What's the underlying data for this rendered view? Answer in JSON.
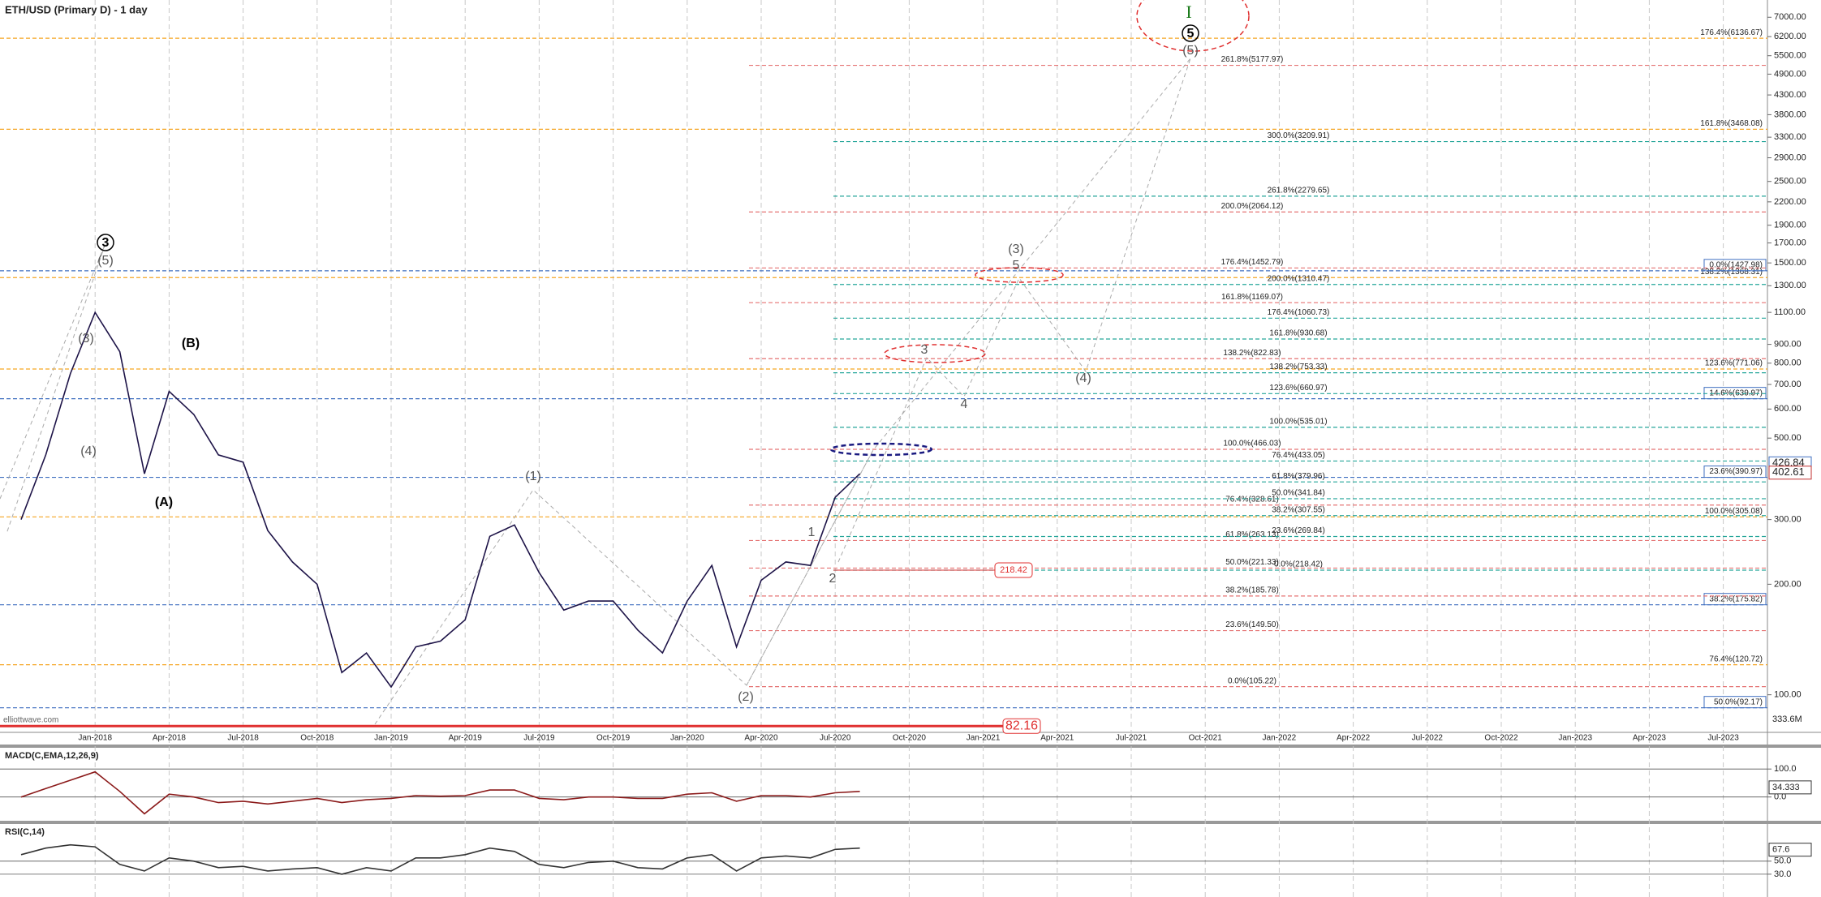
{
  "chart_data": [
    {
      "type": "line",
      "title": "ETH/USD (Primary D) - 1 day",
      "log_scale": true,
      "grid": true,
      "color": "#1e1448",
      "ylim": [
        79,
        7800
      ],
      "yticks": [
        {
          "value": 7000,
          "label": "7000.00"
        },
        {
          "value": 6200,
          "label": "6200.00"
        },
        {
          "value": 5500,
          "label": "5500.00"
        },
        {
          "value": 4900,
          "label": "4900.00"
        },
        {
          "value": 4300,
          "label": "4300.00"
        },
        {
          "value": 3800,
          "label": "3800.00"
        },
        {
          "value": 3300,
          "label": "3300.00"
        },
        {
          "value": 2900,
          "label": "2900.00"
        },
        {
          "value": 2500,
          "label": "2500.00"
        },
        {
          "value": 2200,
          "label": "2200.00"
        },
        {
          "value": 1900,
          "label": "1900.00"
        },
        {
          "value": 1700,
          "label": "1700.00"
        },
        {
          "value": 1500,
          "label": "1500.00"
        },
        {
          "value": 1300,
          "label": "1300.00"
        },
        {
          "value": 1100,
          "label": "1100.00"
        },
        {
          "value": 900,
          "label": "900.00"
        },
        {
          "value": 800,
          "label": "800.00"
        },
        {
          "value": 700,
          "label": "700.00"
        },
        {
          "value": 600,
          "label": "600.00"
        },
        {
          "value": 500,
          "label": "500.00"
        },
        {
          "value": 300,
          "label": "300.00"
        },
        {
          "value": 200,
          "label": "200.00"
        },
        {
          "value": 100,
          "label": "100.00"
        }
      ],
      "categories": [
        null,
        null,
        null,
        "Jan-2018",
        null,
        null,
        "Apr-2018",
        null,
        null,
        "Jul-2018",
        null,
        null,
        "Oct-2018",
        null,
        null,
        "Jan-2019",
        null,
        null,
        "Apr-2019",
        null,
        null,
        "Jul-2019",
        null,
        null,
        "Oct-2019",
        null,
        null,
        "Jan-2020",
        null,
        null,
        "Apr-2020",
        null,
        null,
        "Jul-2020",
        null,
        null,
        "Oct-2020",
        null,
        null,
        "Jan-2021",
        null,
        null,
        "Apr-2021",
        null,
        null,
        "Jul-2021",
        null,
        null,
        "Oct-2021",
        null,
        null,
        "Jan-2022",
        null,
        null,
        "Apr-2022",
        null,
        null,
        "Jul-2022",
        null,
        null,
        "Oct-2022",
        null,
        null,
        "Jan-2023",
        null,
        null,
        "Apr-2023",
        null,
        null,
        "Jul-2023",
        null
      ],
      "values": [
        300,
        450,
        750,
        1100,
        860,
        400,
        670,
        580,
        450,
        430,
        280,
        230,
        200,
        115,
        130,
        105,
        135,
        140,
        160,
        270,
        290,
        215,
        170,
        180,
        180,
        150,
        130,
        180,
        225,
        135,
        205,
        230,
        225,
        345,
        400,
        null,
        null,
        null,
        null,
        null,
        null,
        null,
        null,
        null,
        null,
        null,
        null,
        null,
        null,
        null,
        null,
        null,
        null,
        null,
        null,
        null,
        null,
        null,
        null,
        null,
        null,
        null,
        null,
        null,
        null,
        null,
        null,
        null,
        null,
        null,
        null
      ],
      "levels": [
        {
          "label": "176.4%(6136.67)",
          "value": 6136.67,
          "color": "#f5a623"
        },
        {
          "label": "161.8%(3468.08)",
          "value": 3468.08,
          "color": "#f5a623"
        },
        {
          "label": "138.2%(1368.31)",
          "value": 1368.31,
          "color": "#f5a623"
        },
        {
          "label": "123.6%(771.06)",
          "value": 771.06,
          "color": "#f5a623"
        },
        {
          "label": "100.0%(305.08)",
          "value": 305.08,
          "color": "#f5a623"
        },
        {
          "label": "76.4%(120.72)",
          "value": 120.72,
          "color": "#f5a623"
        },
        {
          "label": "0.0%(1427.98)",
          "value": 1427.98,
          "color": "#3f6fc0"
        },
        {
          "label": "14.6%(639.97)",
          "value": 639.97,
          "color": "#3f6fc0"
        },
        {
          "label": "23.6%(390.97)",
          "value": 390.97,
          "color": "#3f6fc0"
        },
        {
          "label": "38.2%(175.82)",
          "value": 175.82,
          "color": "#3f6fc0"
        },
        {
          "label": "50.0%(92.17)",
          "value": 92.17,
          "color": "#3f6fc0"
        },
        {
          "label": "261.8%(5177.97)",
          "value": 5177.97,
          "color": "#e57373"
        },
        {
          "label": "200.0%(2064.12)",
          "value": 2064.12,
          "color": "#e57373"
        },
        {
          "label": "176.4%(1452.79)",
          "value": 1452.79,
          "color": "#e57373"
        },
        {
          "label": "161.8%(1169.07)",
          "value": 1169.07,
          "color": "#e57373"
        },
        {
          "label": "138.2%(822.83)",
          "value": 822.83,
          "color": "#e57373"
        },
        {
          "label": "100.0%(466.03)",
          "value": 466.03,
          "color": "#e57373"
        },
        {
          "label": "76.4%(328.61)",
          "value": 328.61,
          "color": "#e57373"
        },
        {
          "label": "61.8%(263.13)",
          "value": 263.13,
          "color": "#e57373"
        },
        {
          "label": "50.0%(221.33)",
          "value": 221.33,
          "color": "#e57373"
        },
        {
          "label": "38.2%(185.78)",
          "value": 185.78,
          "color": "#e57373"
        },
        {
          "label": "23.6%(149.50)",
          "value": 149.5,
          "color": "#e57373"
        },
        {
          "label": "0.0%(105.22)",
          "value": 105.22,
          "color": "#e57373"
        },
        {
          "label": "300.0%(3209.91)",
          "value": 3209.91,
          "color": "#26a69a"
        },
        {
          "label": "261.8%(2279.65)",
          "value": 2279.65,
          "color": "#26a69a"
        },
        {
          "label": "200.0%(1310.47)",
          "value": 1310.47,
          "color": "#26a69a"
        },
        {
          "label": "176.4%(1060.73)",
          "value": 1060.73,
          "color": "#26a69a"
        },
        {
          "label": "161.8%(930.68)",
          "value": 930.68,
          "color": "#26a69a"
        },
        {
          "label": "138.2%(753.33)",
          "value": 753.33,
          "color": "#26a69a"
        },
        {
          "label": "123.6%(660.97)",
          "value": 660.97,
          "color": "#26a69a"
        },
        {
          "label": "100.0%(535.01)",
          "value": 535.01,
          "color": "#26a69a"
        },
        {
          "label": "76.4%(433.05)",
          "value": 433.05,
          "color": "#26a69a"
        },
        {
          "label": "61.8%(379.96)",
          "value": 379.96,
          "color": "#26a69a"
        },
        {
          "label": "50.0%(341.84)",
          "value": 341.84,
          "color": "#26a69a"
        },
        {
          "label": "38.2%(307.55)",
          "value": 307.55,
          "color": "#26a69a"
        },
        {
          "label": "23.6%(269.84)",
          "value": 269.84,
          "color": "#26a69a"
        },
        {
          "label": "0.0%(218.42)",
          "value": 218.42,
          "color": "#26a69a"
        }
      ],
      "markers": [
        218.42,
        82.16
      ],
      "last_prices": [
        426.84,
        402.61
      ],
      "volume_label": "333.6M",
      "watermark": "elliottwave.com",
      "waves": [
        "3",
        "(5)",
        "(3)",
        "(4)",
        "(B)",
        "(A)",
        "(1)",
        "(2)",
        "1",
        "2",
        "3",
        "4",
        "(3)",
        "5",
        "(4)",
        "I",
        "5",
        "(5)"
      ]
    },
    {
      "type": "line",
      "title": "MACD(C,EMA,12,26,9)",
      "color": "#8b1a1a",
      "ylim": [
        -85,
        176
      ],
      "yticks": [
        {
          "value": 100,
          "label": "100.0"
        },
        {
          "value": 0,
          "label": "0.0"
        }
      ],
      "last_value": 34.333,
      "values": [
        0,
        30,
        60,
        90,
        20,
        -60,
        10,
        0,
        -20,
        -15,
        -25,
        -15,
        -5,
        -20,
        -10,
        -5,
        5,
        3,
        5,
        25,
        25,
        -5,
        -10,
        0,
        0,
        -5,
        -5,
        10,
        15,
        -15,
        5,
        5,
        0,
        15,
        20
      ]
    },
    {
      "type": "line",
      "title": "RSI(C,14)",
      "color": "#333333",
      "ylim": [
        -5,
        107
      ],
      "yticks": [
        {
          "value": 50,
          "label": "50.0"
        },
        {
          "value": 30,
          "label": "30.0"
        }
      ],
      "last_value": 67.6,
      "values": [
        60,
        70,
        75,
        72,
        45,
        35,
        55,
        50,
        40,
        42,
        35,
        38,
        40,
        30,
        40,
        35,
        55,
        55,
        60,
        70,
        65,
        45,
        40,
        48,
        50,
        40,
        38,
        55,
        60,
        35,
        55,
        58,
        55,
        68,
        70
      ]
    }
  ]
}
